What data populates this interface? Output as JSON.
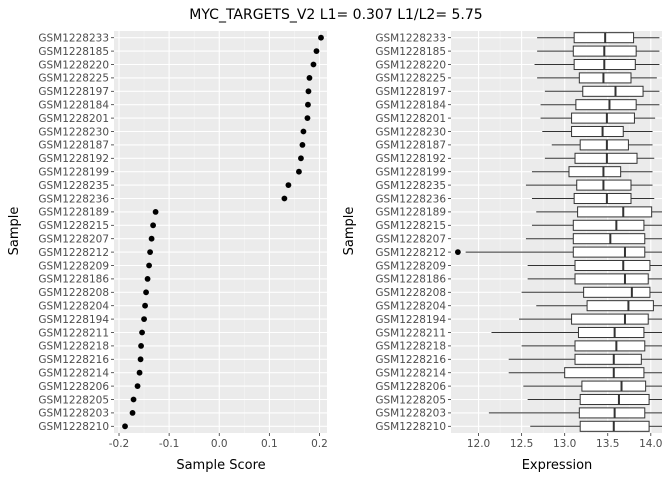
{
  "title": "MYC_TARGETS_V2 L1= 0.307 L1/L2= 5.75",
  "chart_data": [
    {
      "type": "scatter",
      "xlabel": "Sample Score",
      "ylabel": "Sample",
      "xlim": [
        -0.21,
        0.215
      ],
      "xticks": [
        -0.2,
        -0.1,
        0.0,
        0.1,
        0.2
      ],
      "xtick_labels": [
        "-0.2",
        "-0.1",
        "0.0",
        "0.1",
        "0.2"
      ],
      "grid": true,
      "samples": [
        "GSM1228233",
        "GSM1228185",
        "GSM1228220",
        "GSM1228225",
        "GSM1228197",
        "GSM1228184",
        "GSM1228201",
        "GSM1228230",
        "GSM1228187",
        "GSM1228192",
        "GSM1228199",
        "GSM1228235",
        "GSM1228236",
        "GSM1228189",
        "GSM1228215",
        "GSM1228207",
        "GSM1228212",
        "GSM1228209",
        "GSM1228186",
        "GSM1228208",
        "GSM1228204",
        "GSM1228194",
        "GSM1228211",
        "GSM1228218",
        "GSM1228216",
        "GSM1228214",
        "GSM1228206",
        "GSM1228205",
        "GSM1228203",
        "GSM1228210"
      ],
      "values": [
        0.203,
        0.194,
        0.188,
        0.18,
        0.178,
        0.177,
        0.176,
        0.168,
        0.166,
        0.163,
        0.159,
        0.138,
        0.13,
        -0.127,
        -0.132,
        -0.135,
        -0.138,
        -0.14,
        -0.143,
        -0.146,
        -0.148,
        -0.15,
        -0.154,
        -0.156,
        -0.157,
        -0.159,
        -0.163,
        -0.171,
        -0.173,
        -0.188
      ]
    },
    {
      "type": "boxplot",
      "xlabel": "Expression",
      "ylabel": "Sample",
      "xlim": [
        11.68,
        14.13
      ],
      "xticks": [
        12.0,
        12.5,
        13.0,
        13.5,
        14.0
      ],
      "xtick_labels": [
        "12.0",
        "12.5",
        "13.0",
        "13.5",
        "14.0"
      ],
      "grid": true,
      "samples": [
        "GSM1228233",
        "GSM1228185",
        "GSM1228220",
        "GSM1228225",
        "GSM1228197",
        "GSM1228184",
        "GSM1228201",
        "GSM1228230",
        "GSM1228187",
        "GSM1228192",
        "GSM1228199",
        "GSM1228235",
        "GSM1228236",
        "GSM1228189",
        "GSM1228215",
        "GSM1228207",
        "GSM1228212",
        "GSM1228209",
        "GSM1228186",
        "GSM1228208",
        "GSM1228204",
        "GSM1228194",
        "GSM1228211",
        "GSM1228218",
        "GSM1228216",
        "GSM1228214",
        "GSM1228206",
        "GSM1228205",
        "GSM1228203",
        "GSM1228210"
      ],
      "boxes": [
        {
          "min": 12.68,
          "q1": 13.11,
          "median": 13.47,
          "q3": 13.8,
          "max": 14.1
        },
        {
          "min": 12.68,
          "q1": 13.1,
          "median": 13.46,
          "q3": 13.83,
          "max": 14.1
        },
        {
          "min": 12.65,
          "q1": 13.11,
          "median": 13.46,
          "q3": 13.82,
          "max": 14.1
        },
        {
          "min": 12.68,
          "q1": 13.17,
          "median": 13.45,
          "q3": 13.77,
          "max": 14.07
        },
        {
          "min": 12.77,
          "q1": 13.21,
          "median": 13.59,
          "q3": 13.91,
          "max": 14.1
        },
        {
          "min": 12.72,
          "q1": 13.13,
          "median": 13.52,
          "q3": 13.83,
          "max": 14.1
        },
        {
          "min": 12.72,
          "q1": 13.08,
          "median": 13.49,
          "q3": 13.81,
          "max": 14.05
        },
        {
          "min": 12.74,
          "q1": 13.08,
          "median": 13.44,
          "q3": 13.68,
          "max": 14.02
        },
        {
          "min": 12.85,
          "q1": 13.18,
          "median": 13.49,
          "q3": 13.74,
          "max": 14.02
        },
        {
          "min": 12.77,
          "q1": 13.12,
          "median": 13.49,
          "q3": 13.84,
          "max": 14.04
        },
        {
          "min": 12.62,
          "q1": 13.05,
          "median": 13.45,
          "q3": 13.65,
          "max": 14.02
        },
        {
          "min": 12.55,
          "q1": 13.14,
          "median": 13.45,
          "q3": 13.77,
          "max": 14.02
        },
        {
          "min": 12.62,
          "q1": 13.11,
          "median": 13.49,
          "q3": 13.77,
          "max": 14.04
        },
        {
          "min": 12.67,
          "q1": 13.15,
          "median": 13.68,
          "q3": 14.01,
          "max": 14.13
        },
        {
          "min": 12.62,
          "q1": 13.1,
          "median": 13.6,
          "q3": 13.92,
          "max": 14.13
        },
        {
          "min": 12.55,
          "q1": 13.1,
          "median": 13.53,
          "q3": 13.93,
          "max": 14.13
        },
        {
          "min": 11.85,
          "q1": 13.1,
          "median": 13.7,
          "q3": 13.93,
          "max": 14.13,
          "outliers": [
            11.76
          ]
        },
        {
          "min": 12.57,
          "q1": 13.12,
          "median": 13.68,
          "q3": 13.99,
          "max": 14.13
        },
        {
          "min": 12.57,
          "q1": 13.12,
          "median": 13.7,
          "q3": 13.97,
          "max": 14.13
        },
        {
          "min": 12.5,
          "q1": 13.22,
          "median": 13.78,
          "q3": 13.99,
          "max": 14.13
        },
        {
          "min": 12.67,
          "q1": 13.26,
          "median": 13.74,
          "q3": 14.03,
          "max": 14.13
        },
        {
          "min": 12.47,
          "q1": 13.08,
          "median": 13.7,
          "q3": 13.97,
          "max": 14.13
        },
        {
          "min": 12.15,
          "q1": 13.16,
          "median": 13.58,
          "q3": 13.92,
          "max": 14.13
        },
        {
          "min": 12.5,
          "q1": 13.12,
          "median": 13.6,
          "q3": 13.93,
          "max": 14.13
        },
        {
          "min": 12.35,
          "q1": 13.12,
          "median": 13.57,
          "q3": 13.89,
          "max": 14.13
        },
        {
          "min": 12.35,
          "q1": 13.0,
          "median": 13.57,
          "q3": 13.92,
          "max": 14.13
        },
        {
          "min": 12.52,
          "q1": 13.2,
          "median": 13.66,
          "q3": 13.94,
          "max": 14.13
        },
        {
          "min": 12.57,
          "q1": 13.18,
          "median": 13.63,
          "q3": 13.98,
          "max": 14.13
        },
        {
          "min": 12.12,
          "q1": 13.17,
          "median": 13.58,
          "q3": 13.93,
          "max": 14.13
        },
        {
          "min": 12.6,
          "q1": 13.18,
          "median": 13.57,
          "q3": 13.98,
          "max": 14.13
        }
      ]
    }
  ]
}
